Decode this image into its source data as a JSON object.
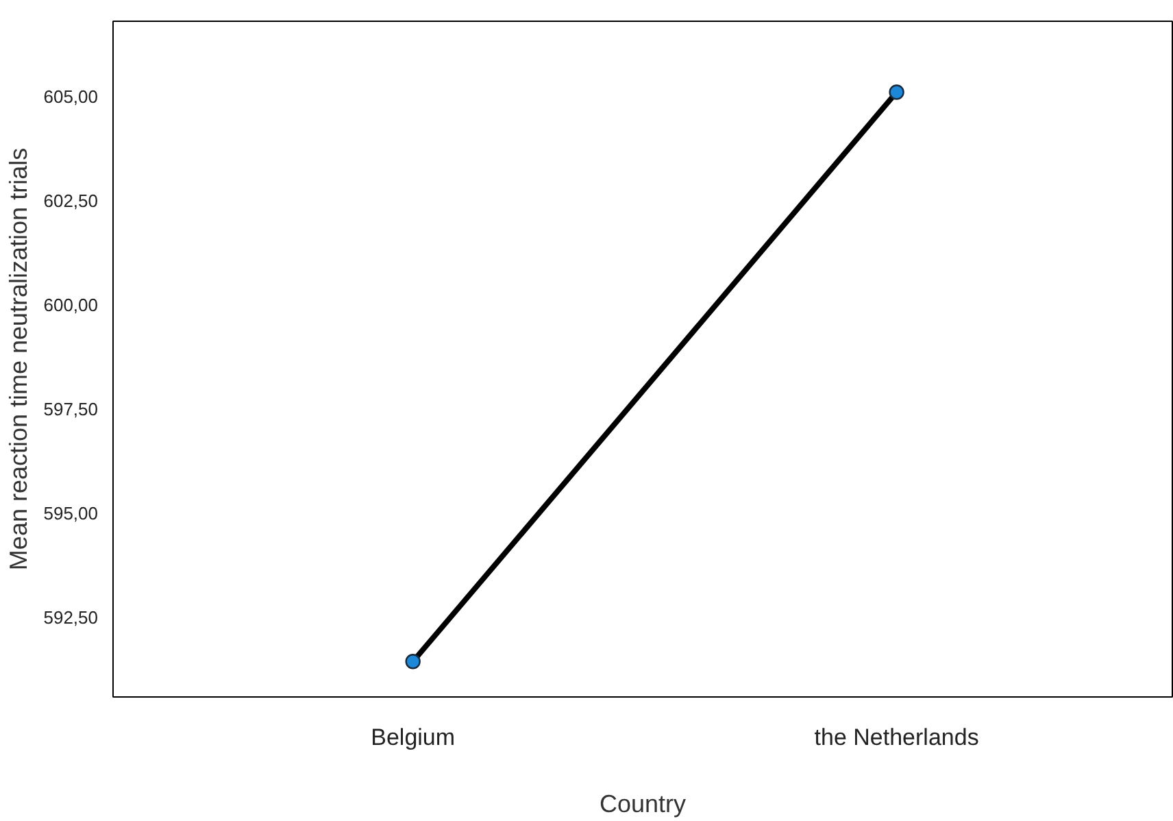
{
  "chart_data": {
    "type": "line",
    "xlabel": "Country",
    "ylabel": "Mean reaction time neutralization trials",
    "categories": [
      "Belgium",
      "the Netherlands"
    ],
    "series": [
      {
        "color": "#000000",
        "values": [
          591.45,
          605.1
        ]
      }
    ],
    "marker": "circle",
    "line_style": "solid",
    "grid": false,
    "ylim": [
      590.6,
      606.8
    ],
    "yticks": [
      {
        "value": 592.5,
        "label": "592,50"
      },
      {
        "value": 595,
        "label": "595,00"
      },
      {
        "value": 597.5,
        "label": "597,50"
      },
      {
        "value": 600,
        "label": "600,00"
      },
      {
        "value": 602.5,
        "label": "602,50"
      },
      {
        "value": 605,
        "label": "605,00"
      }
    ]
  }
}
